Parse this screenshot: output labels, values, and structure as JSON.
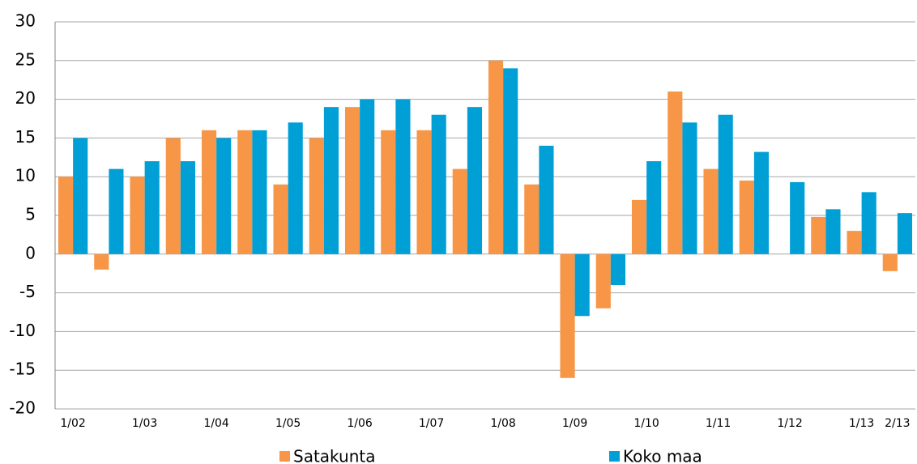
{
  "chart_data": {
    "type": "bar",
    "categories": [
      "1/02",
      null,
      "1/03",
      null,
      "1/04",
      null,
      "1/05",
      null,
      "1/06",
      null,
      "1/07",
      null,
      "1/08",
      null,
      "1/09",
      null,
      "1/10",
      null,
      "1/11",
      null,
      "1/12",
      null,
      "1/13",
      "2/13"
    ],
    "series": [
      {
        "name": "Satakunta",
        "color": "#f79646",
        "values": [
          10,
          -2,
          10,
          15,
          16,
          16,
          9,
          15,
          19,
          16,
          16,
          11,
          25,
          9,
          -16,
          -7,
          7,
          21,
          11,
          9.5,
          null,
          4.8,
          3,
          -2.2
        ]
      },
      {
        "name": "Koko maa",
        "color": "#00a0d7",
        "values": [
          15,
          11,
          12,
          12,
          15,
          16,
          17,
          19,
          20,
          20,
          18,
          19,
          24,
          14,
          -8,
          -4,
          12,
          17,
          18,
          13.2,
          9.3,
          5.8,
          8,
          5.3
        ]
      }
    ],
    "ylim": [
      -20,
      30
    ],
    "yticks": [
      -20,
      -15,
      -10,
      -5,
      0,
      5,
      10,
      15,
      20,
      25,
      30
    ],
    "grid": true
  }
}
